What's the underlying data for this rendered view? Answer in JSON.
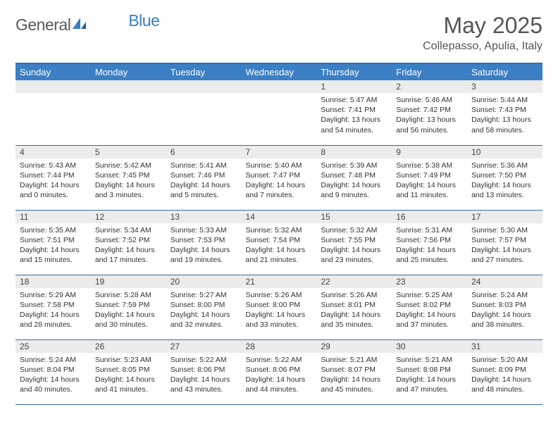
{
  "logo": {
    "word1": "General",
    "word2": "Blue"
  },
  "title": {
    "month": "May 2025",
    "location": "Collepasso, Apulia, Italy"
  },
  "colors": {
    "header_bg": "#3b7fc4",
    "header_text": "#ffffff",
    "border": "#2f6fa8",
    "daynum_bg": "#ececec",
    "text": "#333333",
    "logo_gray": "#5a5a5a",
    "logo_blue": "#3b7fc4"
  },
  "dow": [
    "Sunday",
    "Monday",
    "Tuesday",
    "Wednesday",
    "Thursday",
    "Friday",
    "Saturday"
  ],
  "weeks": [
    [
      {
        "num": "",
        "sunrise": "",
        "sunset": "",
        "daylight": ""
      },
      {
        "num": "",
        "sunrise": "",
        "sunset": "",
        "daylight": ""
      },
      {
        "num": "",
        "sunrise": "",
        "sunset": "",
        "daylight": ""
      },
      {
        "num": "",
        "sunrise": "",
        "sunset": "",
        "daylight": ""
      },
      {
        "num": "1",
        "sunrise": "Sunrise: 5:47 AM",
        "sunset": "Sunset: 7:41 PM",
        "daylight": "Daylight: 13 hours and 54 minutes."
      },
      {
        "num": "2",
        "sunrise": "Sunrise: 5:46 AM",
        "sunset": "Sunset: 7:42 PM",
        "daylight": "Daylight: 13 hours and 56 minutes."
      },
      {
        "num": "3",
        "sunrise": "Sunrise: 5:44 AM",
        "sunset": "Sunset: 7:43 PM",
        "daylight": "Daylight: 13 hours and 58 minutes."
      }
    ],
    [
      {
        "num": "4",
        "sunrise": "Sunrise: 5:43 AM",
        "sunset": "Sunset: 7:44 PM",
        "daylight": "Daylight: 14 hours and 0 minutes."
      },
      {
        "num": "5",
        "sunrise": "Sunrise: 5:42 AM",
        "sunset": "Sunset: 7:45 PM",
        "daylight": "Daylight: 14 hours and 3 minutes."
      },
      {
        "num": "6",
        "sunrise": "Sunrise: 5:41 AM",
        "sunset": "Sunset: 7:46 PM",
        "daylight": "Daylight: 14 hours and 5 minutes."
      },
      {
        "num": "7",
        "sunrise": "Sunrise: 5:40 AM",
        "sunset": "Sunset: 7:47 PM",
        "daylight": "Daylight: 14 hours and 7 minutes."
      },
      {
        "num": "8",
        "sunrise": "Sunrise: 5:39 AM",
        "sunset": "Sunset: 7:48 PM",
        "daylight": "Daylight: 14 hours and 9 minutes."
      },
      {
        "num": "9",
        "sunrise": "Sunrise: 5:38 AM",
        "sunset": "Sunset: 7:49 PM",
        "daylight": "Daylight: 14 hours and 11 minutes."
      },
      {
        "num": "10",
        "sunrise": "Sunrise: 5:36 AM",
        "sunset": "Sunset: 7:50 PM",
        "daylight": "Daylight: 14 hours and 13 minutes."
      }
    ],
    [
      {
        "num": "11",
        "sunrise": "Sunrise: 5:35 AM",
        "sunset": "Sunset: 7:51 PM",
        "daylight": "Daylight: 14 hours and 15 minutes."
      },
      {
        "num": "12",
        "sunrise": "Sunrise: 5:34 AM",
        "sunset": "Sunset: 7:52 PM",
        "daylight": "Daylight: 14 hours and 17 minutes."
      },
      {
        "num": "13",
        "sunrise": "Sunrise: 5:33 AM",
        "sunset": "Sunset: 7:53 PM",
        "daylight": "Daylight: 14 hours and 19 minutes."
      },
      {
        "num": "14",
        "sunrise": "Sunrise: 5:32 AM",
        "sunset": "Sunset: 7:54 PM",
        "daylight": "Daylight: 14 hours and 21 minutes."
      },
      {
        "num": "15",
        "sunrise": "Sunrise: 5:32 AM",
        "sunset": "Sunset: 7:55 PM",
        "daylight": "Daylight: 14 hours and 23 minutes."
      },
      {
        "num": "16",
        "sunrise": "Sunrise: 5:31 AM",
        "sunset": "Sunset: 7:56 PM",
        "daylight": "Daylight: 14 hours and 25 minutes."
      },
      {
        "num": "17",
        "sunrise": "Sunrise: 5:30 AM",
        "sunset": "Sunset: 7:57 PM",
        "daylight": "Daylight: 14 hours and 27 minutes."
      }
    ],
    [
      {
        "num": "18",
        "sunrise": "Sunrise: 5:29 AM",
        "sunset": "Sunset: 7:58 PM",
        "daylight": "Daylight: 14 hours and 28 minutes."
      },
      {
        "num": "19",
        "sunrise": "Sunrise: 5:28 AM",
        "sunset": "Sunset: 7:59 PM",
        "daylight": "Daylight: 14 hours and 30 minutes."
      },
      {
        "num": "20",
        "sunrise": "Sunrise: 5:27 AM",
        "sunset": "Sunset: 8:00 PM",
        "daylight": "Daylight: 14 hours and 32 minutes."
      },
      {
        "num": "21",
        "sunrise": "Sunrise: 5:26 AM",
        "sunset": "Sunset: 8:00 PM",
        "daylight": "Daylight: 14 hours and 33 minutes."
      },
      {
        "num": "22",
        "sunrise": "Sunrise: 5:26 AM",
        "sunset": "Sunset: 8:01 PM",
        "daylight": "Daylight: 14 hours and 35 minutes."
      },
      {
        "num": "23",
        "sunrise": "Sunrise: 5:25 AM",
        "sunset": "Sunset: 8:02 PM",
        "daylight": "Daylight: 14 hours and 37 minutes."
      },
      {
        "num": "24",
        "sunrise": "Sunrise: 5:24 AM",
        "sunset": "Sunset: 8:03 PM",
        "daylight": "Daylight: 14 hours and 38 minutes."
      }
    ],
    [
      {
        "num": "25",
        "sunrise": "Sunrise: 5:24 AM",
        "sunset": "Sunset: 8:04 PM",
        "daylight": "Daylight: 14 hours and 40 minutes."
      },
      {
        "num": "26",
        "sunrise": "Sunrise: 5:23 AM",
        "sunset": "Sunset: 8:05 PM",
        "daylight": "Daylight: 14 hours and 41 minutes."
      },
      {
        "num": "27",
        "sunrise": "Sunrise: 5:22 AM",
        "sunset": "Sunset: 8:06 PM",
        "daylight": "Daylight: 14 hours and 43 minutes."
      },
      {
        "num": "28",
        "sunrise": "Sunrise: 5:22 AM",
        "sunset": "Sunset: 8:06 PM",
        "daylight": "Daylight: 14 hours and 44 minutes."
      },
      {
        "num": "29",
        "sunrise": "Sunrise: 5:21 AM",
        "sunset": "Sunset: 8:07 PM",
        "daylight": "Daylight: 14 hours and 45 minutes."
      },
      {
        "num": "30",
        "sunrise": "Sunrise: 5:21 AM",
        "sunset": "Sunset: 8:08 PM",
        "daylight": "Daylight: 14 hours and 47 minutes."
      },
      {
        "num": "31",
        "sunrise": "Sunrise: 5:20 AM",
        "sunset": "Sunset: 8:09 PM",
        "daylight": "Daylight: 14 hours and 48 minutes."
      }
    ]
  ]
}
